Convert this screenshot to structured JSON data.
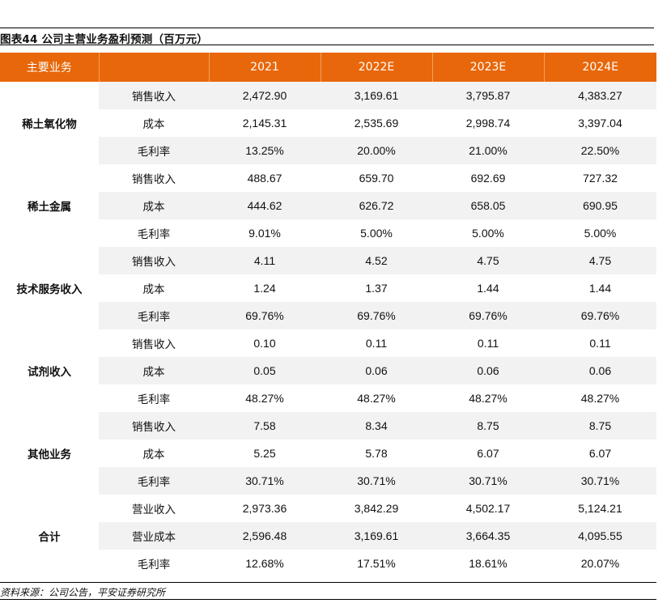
{
  "title": "图表44   公司主营业务盈利预测（百万元）",
  "columns": [
    "主要业务",
    "",
    "2021",
    "2022E",
    "2023E",
    "2024E"
  ],
  "groups": [
    {
      "name": "稀土氧化物",
      "rows": [
        {
          "item": "销售收入",
          "values": [
            "2,472.90",
            "3,169.61",
            "3,795.87",
            "4,383.27"
          ]
        },
        {
          "item": "成本",
          "values": [
            "2,145.31",
            "2,535.69",
            "2,998.74",
            "3,397.04"
          ]
        },
        {
          "item": "毛利率",
          "values": [
            "13.25%",
            "20.00%",
            "21.00%",
            "22.50%"
          ]
        }
      ]
    },
    {
      "name": "稀土金属",
      "rows": [
        {
          "item": "销售收入",
          "values": [
            "488.67",
            "659.70",
            "692.69",
            "727.32"
          ]
        },
        {
          "item": "成本",
          "values": [
            "444.62",
            "626.72",
            "658.05",
            "690.95"
          ]
        },
        {
          "item": "毛利率",
          "values": [
            "9.01%",
            "5.00%",
            "5.00%",
            "5.00%"
          ]
        }
      ]
    },
    {
      "name": "技术服务收入",
      "rows": [
        {
          "item": "销售收入",
          "values": [
            "4.11",
            "4.52",
            "4.75",
            "4.75"
          ]
        },
        {
          "item": "成本",
          "values": [
            "1.24",
            "1.37",
            "1.44",
            "1.44"
          ]
        },
        {
          "item": "毛利率",
          "values": [
            "69.76%",
            "69.76%",
            "69.76%",
            "69.76%"
          ]
        }
      ]
    },
    {
      "name": "试剂收入",
      "rows": [
        {
          "item": "销售收入",
          "values": [
            "0.10",
            "0.11",
            "0.11",
            "0.11"
          ]
        },
        {
          "item": "成本",
          "values": [
            "0.05",
            "0.06",
            "0.06",
            "0.06"
          ]
        },
        {
          "item": "毛利率",
          "values": [
            "48.27%",
            "48.27%",
            "48.27%",
            "48.27%"
          ]
        }
      ]
    },
    {
      "name": "其他业务",
      "rows": [
        {
          "item": "销售收入",
          "values": [
            "7.58",
            "8.34",
            "8.75",
            "8.75"
          ]
        },
        {
          "item": "成本",
          "values": [
            "5.25",
            "5.78",
            "6.07",
            "6.07"
          ]
        },
        {
          "item": "毛利率",
          "values": [
            "30.71%",
            "30.71%",
            "30.71%",
            "30.71%"
          ]
        }
      ]
    },
    {
      "name": "合计",
      "rows": [
        {
          "item": "营业收入",
          "values": [
            "2,973.36",
            "3,842.29",
            "4,502.17",
            "5,124.21"
          ]
        },
        {
          "item": "营业成本",
          "values": [
            "2,596.48",
            "3,169.61",
            "3,664.35",
            "4,095.55"
          ]
        },
        {
          "item": "毛利率",
          "values": [
            "12.68%",
            "17.51%",
            "18.61%",
            "20.07%"
          ]
        }
      ]
    }
  ],
  "source": "资料来源：公司公告，平安证券研究所"
}
